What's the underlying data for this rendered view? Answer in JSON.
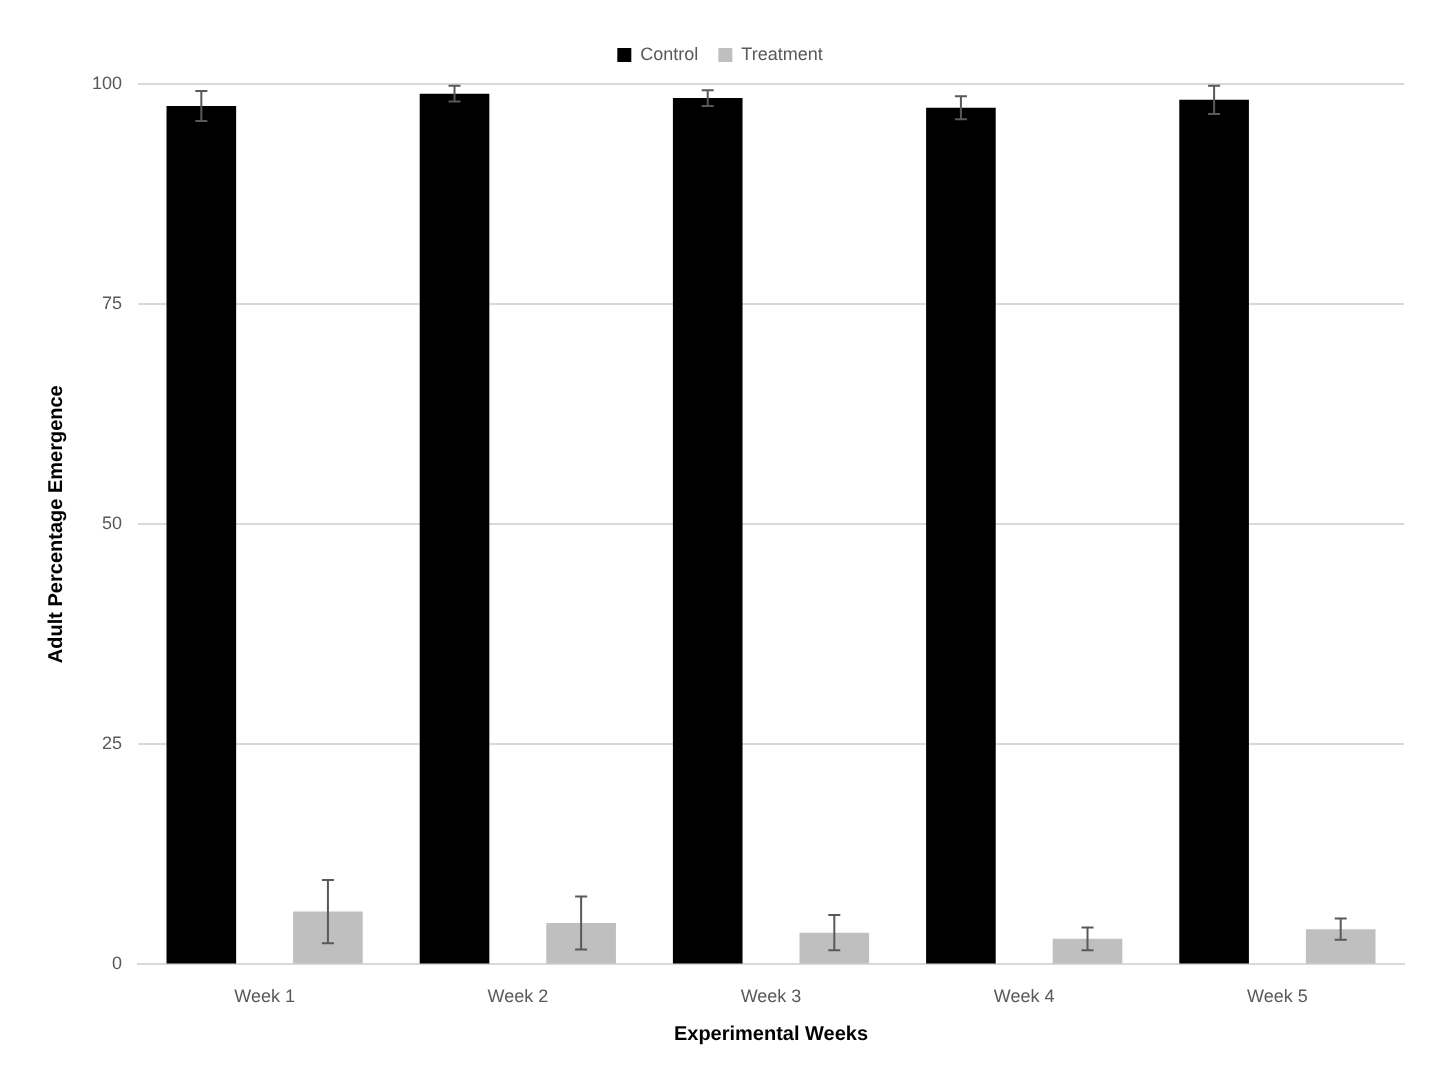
{
  "chart_data": {
    "type": "bar",
    "xlabel": "Experimental Weeks",
    "ylabel": "Adult Percentage Emergence",
    "categories": [
      "Week 1",
      "Week 2",
      "Week 3",
      "Week 4",
      "Week 5"
    ],
    "series": [
      {
        "name": "Control",
        "color": "#000000",
        "values": [
          97.5,
          98.9,
          98.4,
          97.3,
          98.2
        ],
        "errors": [
          1.7,
          0.9,
          0.9,
          1.3,
          1.6
        ]
      },
      {
        "name": "Treatment",
        "color": "#bfbfbf",
        "values": [
          6.0,
          4.7,
          3.6,
          2.9,
          4.0
        ],
        "errors": [
          3.6,
          3.0,
          2.0,
          1.3,
          1.2
        ]
      }
    ],
    "ylim": [
      0,
      100
    ],
    "yticks": [
      0,
      25,
      50,
      75,
      100
    ],
    "grid": "y",
    "legend": "top"
  }
}
